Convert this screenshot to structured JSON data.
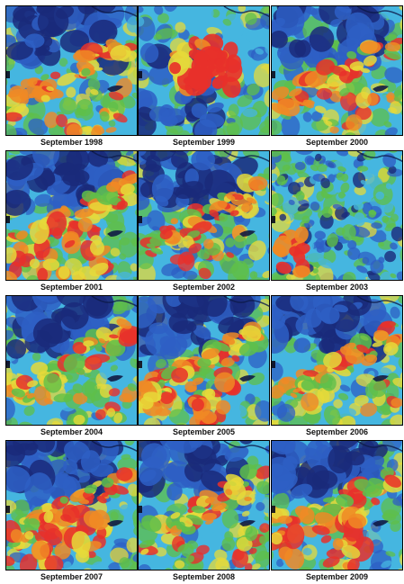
{
  "panels": [
    {
      "caption": "September 1998",
      "pattern": "a"
    },
    {
      "caption": "September 1999",
      "pattern": "b"
    },
    {
      "caption": "September 2000",
      "pattern": "a"
    },
    {
      "caption": "September 2001",
      "pattern": "c"
    },
    {
      "caption": "September 2002",
      "pattern": "a"
    },
    {
      "caption": "September 2003",
      "pattern": "d"
    },
    {
      "caption": "September 2004",
      "pattern": "a"
    },
    {
      "caption": "September 2005",
      "pattern": "c"
    },
    {
      "caption": "September 2006",
      "pattern": "a"
    },
    {
      "caption": "September 2007",
      "pattern": "c"
    },
    {
      "caption": "September 2008",
      "pattern": "a"
    },
    {
      "caption": "September 2009",
      "pattern": "c"
    }
  ],
  "palette": {
    "navy": "#1a2a7a",
    "blue": "#2e5fc4",
    "cyan": "#45b6e0",
    "green": "#5fbf4a",
    "yellow": "#e6d93a",
    "orange": "#f08a24",
    "red": "#e8302a"
  }
}
